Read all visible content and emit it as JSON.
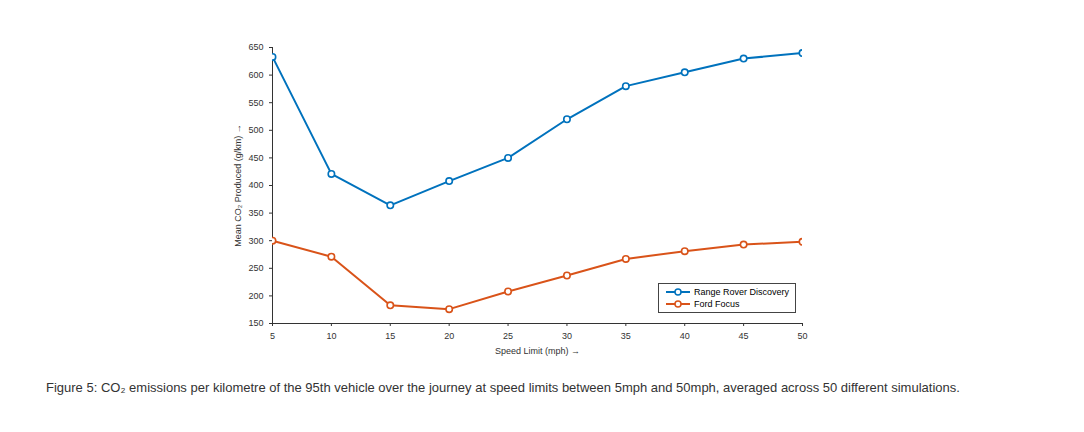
{
  "chart_data": {
    "type": "line",
    "x_label": "Speed Limit (mph)",
    "y_label": "Mean CO₂ Produced (g/km)",
    "caption": "Figure 5: CO₂ emissions per kilometre of the 95th vehicle over the journey at speed limits between 5mph and 50mph, averaged across 50 different simulations.",
    "x": [
      5,
      10,
      15,
      20,
      25,
      30,
      35,
      40,
      45,
      50
    ],
    "series": [
      {
        "name": "Range Rover Discovery",
        "color": "#0072bd",
        "marker": "circle",
        "values": [
          633,
          421,
          364,
          408,
          450,
          520,
          580,
          605,
          630,
          640
        ]
      },
      {
        "name": "Ford Focus",
        "color": "#d95319",
        "marker": "circle",
        "values": [
          300,
          271,
          183,
          176,
          208,
          237,
          267,
          281,
          293,
          298
        ]
      }
    ],
    "xlim": [
      5,
      50
    ],
    "xticks": [
      5,
      10,
      15,
      20,
      25,
      30,
      35,
      40,
      45,
      50
    ],
    "ylim": [
      150,
      650
    ],
    "yticks": [
      150,
      200,
      250,
      300,
      350,
      400,
      450,
      500,
      550,
      600,
      650
    ],
    "grid": false,
    "legend": "lower right"
  }
}
